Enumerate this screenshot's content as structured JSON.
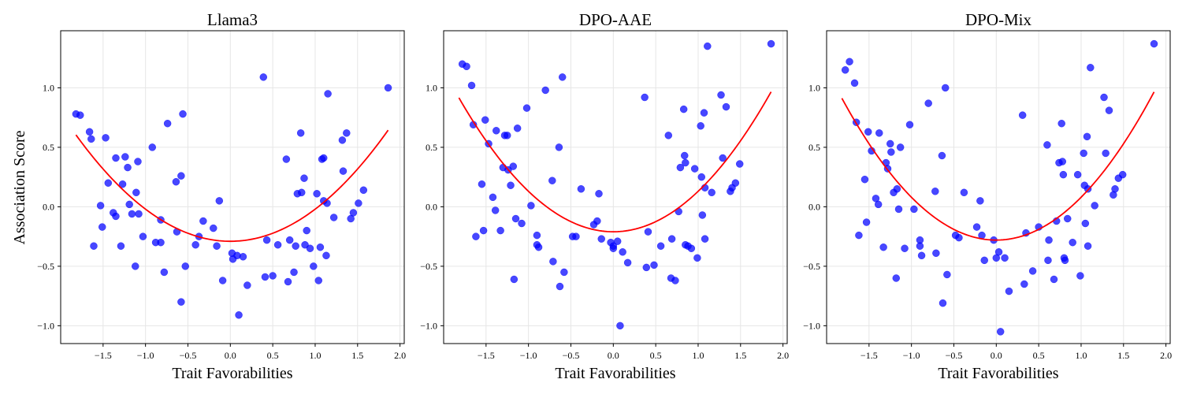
{
  "figure": {
    "ylabel": "Association Score",
    "colors": {
      "point": "#0000ff",
      "fit": "#ff0000",
      "grid": "#e6e6e6",
      "axis": "#000000"
    }
  },
  "chart_data": [
    {
      "type": "scatter",
      "title": "Llama3",
      "xlabel": "Trait Favorabilities",
      "ylabel": "Association Score",
      "xlim": [
        -2.0,
        2.05
      ],
      "ylim": [
        -1.15,
        1.48
      ],
      "xticks": [
        -1.5,
        -1.0,
        -0.5,
        0.0,
        0.5,
        1.0,
        1.5,
        2.0
      ],
      "xtick_labels": [
        "−1.5",
        "−1.0",
        "−0.5",
        "0.0",
        "0.5",
        "1.0",
        "1.5",
        "2.0"
      ],
      "yticks": [
        -1.0,
        -0.5,
        0.0,
        0.5,
        1.0
      ],
      "ytick_labels": [
        "−1.0",
        "−0.5",
        "0.0",
        "0.5",
        "1.0"
      ],
      "grid": true,
      "fit": {
        "type": "quadratic",
        "x_range": [
          -1.82,
          1.86
        ],
        "coefficients": [
          0.27,
          0.0,
          -0.29
        ]
      },
      "points": [
        [
          -1.82,
          0.78
        ],
        [
          -1.77,
          0.77
        ],
        [
          -1.66,
          0.63
        ],
        [
          -1.64,
          0.57
        ],
        [
          -1.61,
          -0.33
        ],
        [
          -1.53,
          0.01
        ],
        [
          -1.51,
          -0.17
        ],
        [
          -1.47,
          0.58
        ],
        [
          -1.44,
          0.2
        ],
        [
          -1.38,
          -0.05
        ],
        [
          -1.35,
          0.41
        ],
        [
          -1.35,
          -0.08
        ],
        [
          -1.29,
          -0.33
        ],
        [
          -1.27,
          0.19
        ],
        [
          -1.24,
          0.42
        ],
        [
          -1.21,
          0.33
        ],
        [
          -1.19,
          0.02
        ],
        [
          -1.16,
          -0.06
        ],
        [
          -1.12,
          -0.5
        ],
        [
          -1.11,
          0.12
        ],
        [
          -1.09,
          0.38
        ],
        [
          -1.08,
          -0.06
        ],
        [
          -1.03,
          -0.25
        ],
        [
          -0.92,
          0.5
        ],
        [
          -0.88,
          -0.3
        ],
        [
          -0.82,
          -0.3
        ],
        [
          -0.82,
          -0.11
        ],
        [
          -0.78,
          -0.55
        ],
        [
          -0.74,
          0.7
        ],
        [
          -0.64,
          0.21
        ],
        [
          -0.63,
          -0.21
        ],
        [
          -0.58,
          0.26
        ],
        [
          -0.58,
          -0.8
        ],
        [
          -0.56,
          0.78
        ],
        [
          -0.53,
          -0.5
        ],
        [
          -0.41,
          -0.32
        ],
        [
          -0.37,
          -0.25
        ],
        [
          -0.32,
          -0.12
        ],
        [
          -0.2,
          -0.18
        ],
        [
          -0.16,
          -0.33
        ],
        [
          -0.13,
          0.05
        ],
        [
          -0.09,
          -0.62
        ],
        [
          0.02,
          -0.39
        ],
        [
          0.03,
          -0.44
        ],
        [
          0.08,
          -0.41
        ],
        [
          0.1,
          -0.91
        ],
        [
          0.15,
          -0.42
        ],
        [
          0.2,
          -0.66
        ],
        [
          0.39,
          1.09
        ],
        [
          0.41,
          -0.59
        ],
        [
          0.43,
          -0.28
        ],
        [
          0.5,
          -0.58
        ],
        [
          0.56,
          -0.32
        ],
        [
          0.66,
          0.4
        ],
        [
          0.68,
          -0.63
        ],
        [
          0.7,
          -0.28
        ],
        [
          0.75,
          -0.55
        ],
        [
          0.77,
          -0.33
        ],
        [
          0.79,
          0.11
        ],
        [
          0.83,
          0.62
        ],
        [
          0.84,
          0.12
        ],
        [
          0.87,
          0.24
        ],
        [
          0.88,
          -0.32
        ],
        [
          0.9,
          -0.2
        ],
        [
          0.94,
          -0.35
        ],
        [
          0.98,
          -0.5
        ],
        [
          1.02,
          0.11
        ],
        [
          1.04,
          -0.62
        ],
        [
          1.06,
          -0.34
        ],
        [
          1.08,
          0.4
        ],
        [
          1.1,
          0.41
        ],
        [
          1.1,
          0.05
        ],
        [
          1.13,
          -0.41
        ],
        [
          1.14,
          0.03
        ],
        [
          1.15,
          0.95
        ],
        [
          1.22,
          -0.09
        ],
        [
          1.32,
          0.56
        ],
        [
          1.33,
          0.3
        ],
        [
          1.37,
          0.62
        ],
        [
          1.42,
          -0.1
        ],
        [
          1.45,
          -0.05
        ],
        [
          1.51,
          0.03
        ],
        [
          1.57,
          0.14
        ],
        [
          1.86,
          1.0
        ]
      ]
    },
    {
      "type": "scatter",
      "title": "DPO-AAE",
      "xlabel": "Trait Favorabilities",
      "ylabel": "",
      "xlim": [
        -2.0,
        2.05
      ],
      "ylim": [
        -1.15,
        1.48
      ],
      "xticks": [
        -1.5,
        -1.0,
        -0.5,
        0.0,
        0.5,
        1.0,
        1.5,
        2.0
      ],
      "xtick_labels": [
        "−1.5",
        "−1.0",
        "−0.5",
        "0.0",
        "0.5",
        "1.0",
        "1.5",
        "2.0"
      ],
      "yticks": [
        -1.0,
        -0.5,
        0.0,
        0.5,
        1.0
      ],
      "ytick_labels": [
        "−1.0",
        "−0.5",
        "0.0",
        "0.5",
        "1.0"
      ],
      "grid": true,
      "fit": {
        "type": "quadratic",
        "x_range": [
          -1.82,
          1.86
        ],
        "coefficients": [
          0.34,
          0.0,
          -0.21
        ]
      },
      "points": [
        [
          -1.78,
          1.2
        ],
        [
          -1.73,
          1.18
        ],
        [
          -1.67,
          1.02
        ],
        [
          -1.65,
          0.69
        ],
        [
          -1.62,
          -0.25
        ],
        [
          -1.55,
          0.19
        ],
        [
          -1.53,
          -0.2
        ],
        [
          -1.51,
          0.73
        ],
        [
          -1.47,
          0.53
        ],
        [
          -1.42,
          0.08
        ],
        [
          -1.39,
          -0.03
        ],
        [
          -1.38,
          0.64
        ],
        [
          -1.33,
          -0.2
        ],
        [
          -1.3,
          0.33
        ],
        [
          -1.28,
          0.6
        ],
        [
          -1.25,
          0.6
        ],
        [
          -1.24,
          0.31
        ],
        [
          -1.21,
          0.18
        ],
        [
          -1.18,
          0.34
        ],
        [
          -1.17,
          -0.61
        ],
        [
          -1.15,
          -0.1
        ],
        [
          -1.13,
          0.66
        ],
        [
          -1.08,
          -0.14
        ],
        [
          -1.02,
          0.83
        ],
        [
          -0.97,
          0.01
        ],
        [
          -0.9,
          -0.24
        ],
        [
          -0.9,
          -0.32
        ],
        [
          -0.88,
          -0.34
        ],
        [
          -0.8,
          0.98
        ],
        [
          -0.72,
          0.22
        ],
        [
          -0.71,
          -0.46
        ],
        [
          -0.64,
          0.5
        ],
        [
          -0.63,
          -0.67
        ],
        [
          -0.6,
          1.09
        ],
        [
          -0.58,
          -0.55
        ],
        [
          -0.48,
          -0.25
        ],
        [
          -0.44,
          -0.25
        ],
        [
          -0.38,
          0.15
        ],
        [
          -0.23,
          -0.15
        ],
        [
          -0.19,
          -0.12
        ],
        [
          -0.17,
          0.11
        ],
        [
          -0.14,
          -0.27
        ],
        [
          -0.03,
          -0.3
        ],
        [
          0.0,
          -0.33
        ],
        [
          0.0,
          -0.35
        ],
        [
          0.05,
          -0.29
        ],
        [
          0.08,
          -1.0
        ],
        [
          0.11,
          -0.38
        ],
        [
          0.17,
          -0.47
        ],
        [
          0.37,
          0.92
        ],
        [
          0.39,
          -0.51
        ],
        [
          0.41,
          -0.21
        ],
        [
          0.48,
          -0.49
        ],
        [
          0.56,
          -0.33
        ],
        [
          0.65,
          0.6
        ],
        [
          0.68,
          -0.6
        ],
        [
          0.69,
          -0.27
        ],
        [
          0.73,
          -0.62
        ],
        [
          0.77,
          -0.04
        ],
        [
          0.79,
          0.33
        ],
        [
          0.83,
          0.82
        ],
        [
          0.84,
          0.43
        ],
        [
          0.85,
          0.37
        ],
        [
          0.85,
          -0.32
        ],
        [
          0.88,
          -0.33
        ],
        [
          0.92,
          -0.35
        ],
        [
          0.96,
          0.32
        ],
        [
          0.99,
          -0.43
        ],
        [
          1.03,
          0.68
        ],
        [
          1.04,
          0.25
        ],
        [
          1.05,
          -0.07
        ],
        [
          1.07,
          0.79
        ],
        [
          1.08,
          0.16
        ],
        [
          1.08,
          -0.27
        ],
        [
          1.11,
          1.35
        ],
        [
          1.16,
          0.12
        ],
        [
          1.27,
          0.94
        ],
        [
          1.29,
          0.41
        ],
        [
          1.33,
          0.84
        ],
        [
          1.38,
          0.13
        ],
        [
          1.4,
          0.16
        ],
        [
          1.44,
          0.2
        ],
        [
          1.49,
          0.36
        ],
        [
          1.86,
          1.37
        ]
      ]
    },
    {
      "type": "scatter",
      "title": "DPO-Mix",
      "xlabel": "Trait Favorabilities",
      "ylabel": "",
      "xlim": [
        -2.0,
        2.05
      ],
      "ylim": [
        -1.15,
        1.48
      ],
      "xticks": [
        -1.5,
        -1.0,
        -0.5,
        0.0,
        0.5,
        1.0,
        1.5,
        2.0
      ],
      "xtick_labels": [
        "−1.5",
        "−1.0",
        "−0.5",
        "0.0",
        "0.5",
        "1.0",
        "1.5",
        "2.0"
      ],
      "yticks": [
        -1.0,
        -0.5,
        0.0,
        0.5,
        1.0
      ],
      "ytick_labels": [
        "−1.0",
        "−0.5",
        "0.0",
        "0.5",
        "1.0"
      ],
      "grid": true,
      "fit": {
        "type": "quadratic",
        "x_range": [
          -1.82,
          1.86
        ],
        "coefficients": [
          0.36,
          0.0,
          -0.28
        ]
      },
      "points": [
        [
          -1.78,
          1.15
        ],
        [
          -1.73,
          1.22
        ],
        [
          -1.67,
          1.04
        ],
        [
          -1.65,
          0.71
        ],
        [
          -1.62,
          -0.24
        ],
        [
          -1.55,
          0.23
        ],
        [
          -1.53,
          -0.13
        ],
        [
          -1.51,
          0.63
        ],
        [
          -1.47,
          0.47
        ],
        [
          -1.42,
          0.07
        ],
        [
          -1.39,
          0.02
        ],
        [
          -1.38,
          0.62
        ],
        [
          -1.33,
          -0.34
        ],
        [
          -1.3,
          0.37
        ],
        [
          -1.28,
          0.32
        ],
        [
          -1.25,
          0.53
        ],
        [
          -1.24,
          0.46
        ],
        [
          -1.21,
          0.12
        ],
        [
          -1.18,
          -0.6
        ],
        [
          -1.17,
          0.15
        ],
        [
          -1.15,
          -0.02
        ],
        [
          -1.13,
          0.5
        ],
        [
          -1.08,
          -0.35
        ],
        [
          -1.02,
          0.69
        ],
        [
          -0.97,
          -0.02
        ],
        [
          -0.9,
          -0.28
        ],
        [
          -0.9,
          -0.33
        ],
        [
          -0.88,
          -0.41
        ],
        [
          -0.8,
          0.87
        ],
        [
          -0.72,
          0.13
        ],
        [
          -0.71,
          -0.39
        ],
        [
          -0.64,
          0.43
        ],
        [
          -0.63,
          -0.81
        ],
        [
          -0.6,
          1.0
        ],
        [
          -0.58,
          -0.57
        ],
        [
          -0.48,
          -0.24
        ],
        [
          -0.44,
          -0.26
        ],
        [
          -0.38,
          0.12
        ],
        [
          -0.23,
          -0.17
        ],
        [
          -0.19,
          0.05
        ],
        [
          -0.17,
          -0.24
        ],
        [
          -0.14,
          -0.45
        ],
        [
          -0.03,
          -0.28
        ],
        [
          0.0,
          -0.43
        ],
        [
          0.03,
          -0.38
        ],
        [
          0.05,
          -1.05
        ],
        [
          0.1,
          -0.43
        ],
        [
          0.15,
          -0.71
        ],
        [
          0.31,
          0.77
        ],
        [
          0.33,
          -0.65
        ],
        [
          0.35,
          -0.22
        ],
        [
          0.43,
          -0.54
        ],
        [
          0.5,
          -0.17
        ],
        [
          0.6,
          0.52
        ],
        [
          0.61,
          -0.45
        ],
        [
          0.62,
          -0.28
        ],
        [
          0.68,
          -0.61
        ],
        [
          0.71,
          -0.12
        ],
        [
          0.74,
          0.37
        ],
        [
          0.77,
          0.7
        ],
        [
          0.78,
          0.38
        ],
        [
          0.79,
          0.27
        ],
        [
          0.8,
          -0.43
        ],
        [
          0.81,
          -0.45
        ],
        [
          0.84,
          -0.1
        ],
        [
          0.9,
          -0.3
        ],
        [
          0.96,
          0.27
        ],
        [
          0.99,
          -0.58
        ],
        [
          1.03,
          0.45
        ],
        [
          1.04,
          0.18
        ],
        [
          1.05,
          -0.14
        ],
        [
          1.07,
          0.59
        ],
        [
          1.08,
          0.15
        ],
        [
          1.08,
          -0.33
        ],
        [
          1.11,
          1.17
        ],
        [
          1.16,
          0.01
        ],
        [
          1.27,
          0.92
        ],
        [
          1.29,
          0.45
        ],
        [
          1.33,
          0.81
        ],
        [
          1.38,
          0.1
        ],
        [
          1.4,
          0.15
        ],
        [
          1.44,
          0.24
        ],
        [
          1.49,
          0.27
        ],
        [
          1.86,
          1.37
        ]
      ]
    }
  ]
}
